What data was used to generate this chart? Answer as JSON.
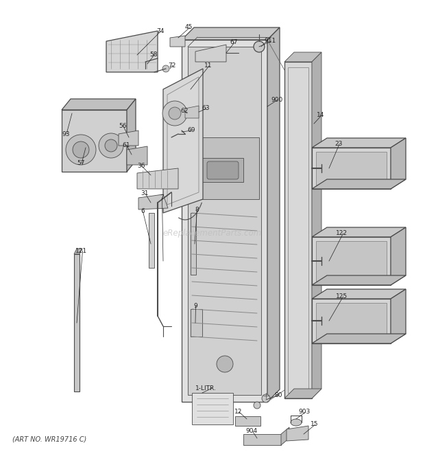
{
  "bg_color": "#ffffff",
  "lc": "#4a4a4a",
  "lc2": "#666666",
  "label_color": "#222222",
  "watermark": "eReplacementParts.com",
  "art_no": "(ART NO. WR19716 C)",
  "figsize": [
    6.2,
    6.61
  ],
  "dpi": 100
}
